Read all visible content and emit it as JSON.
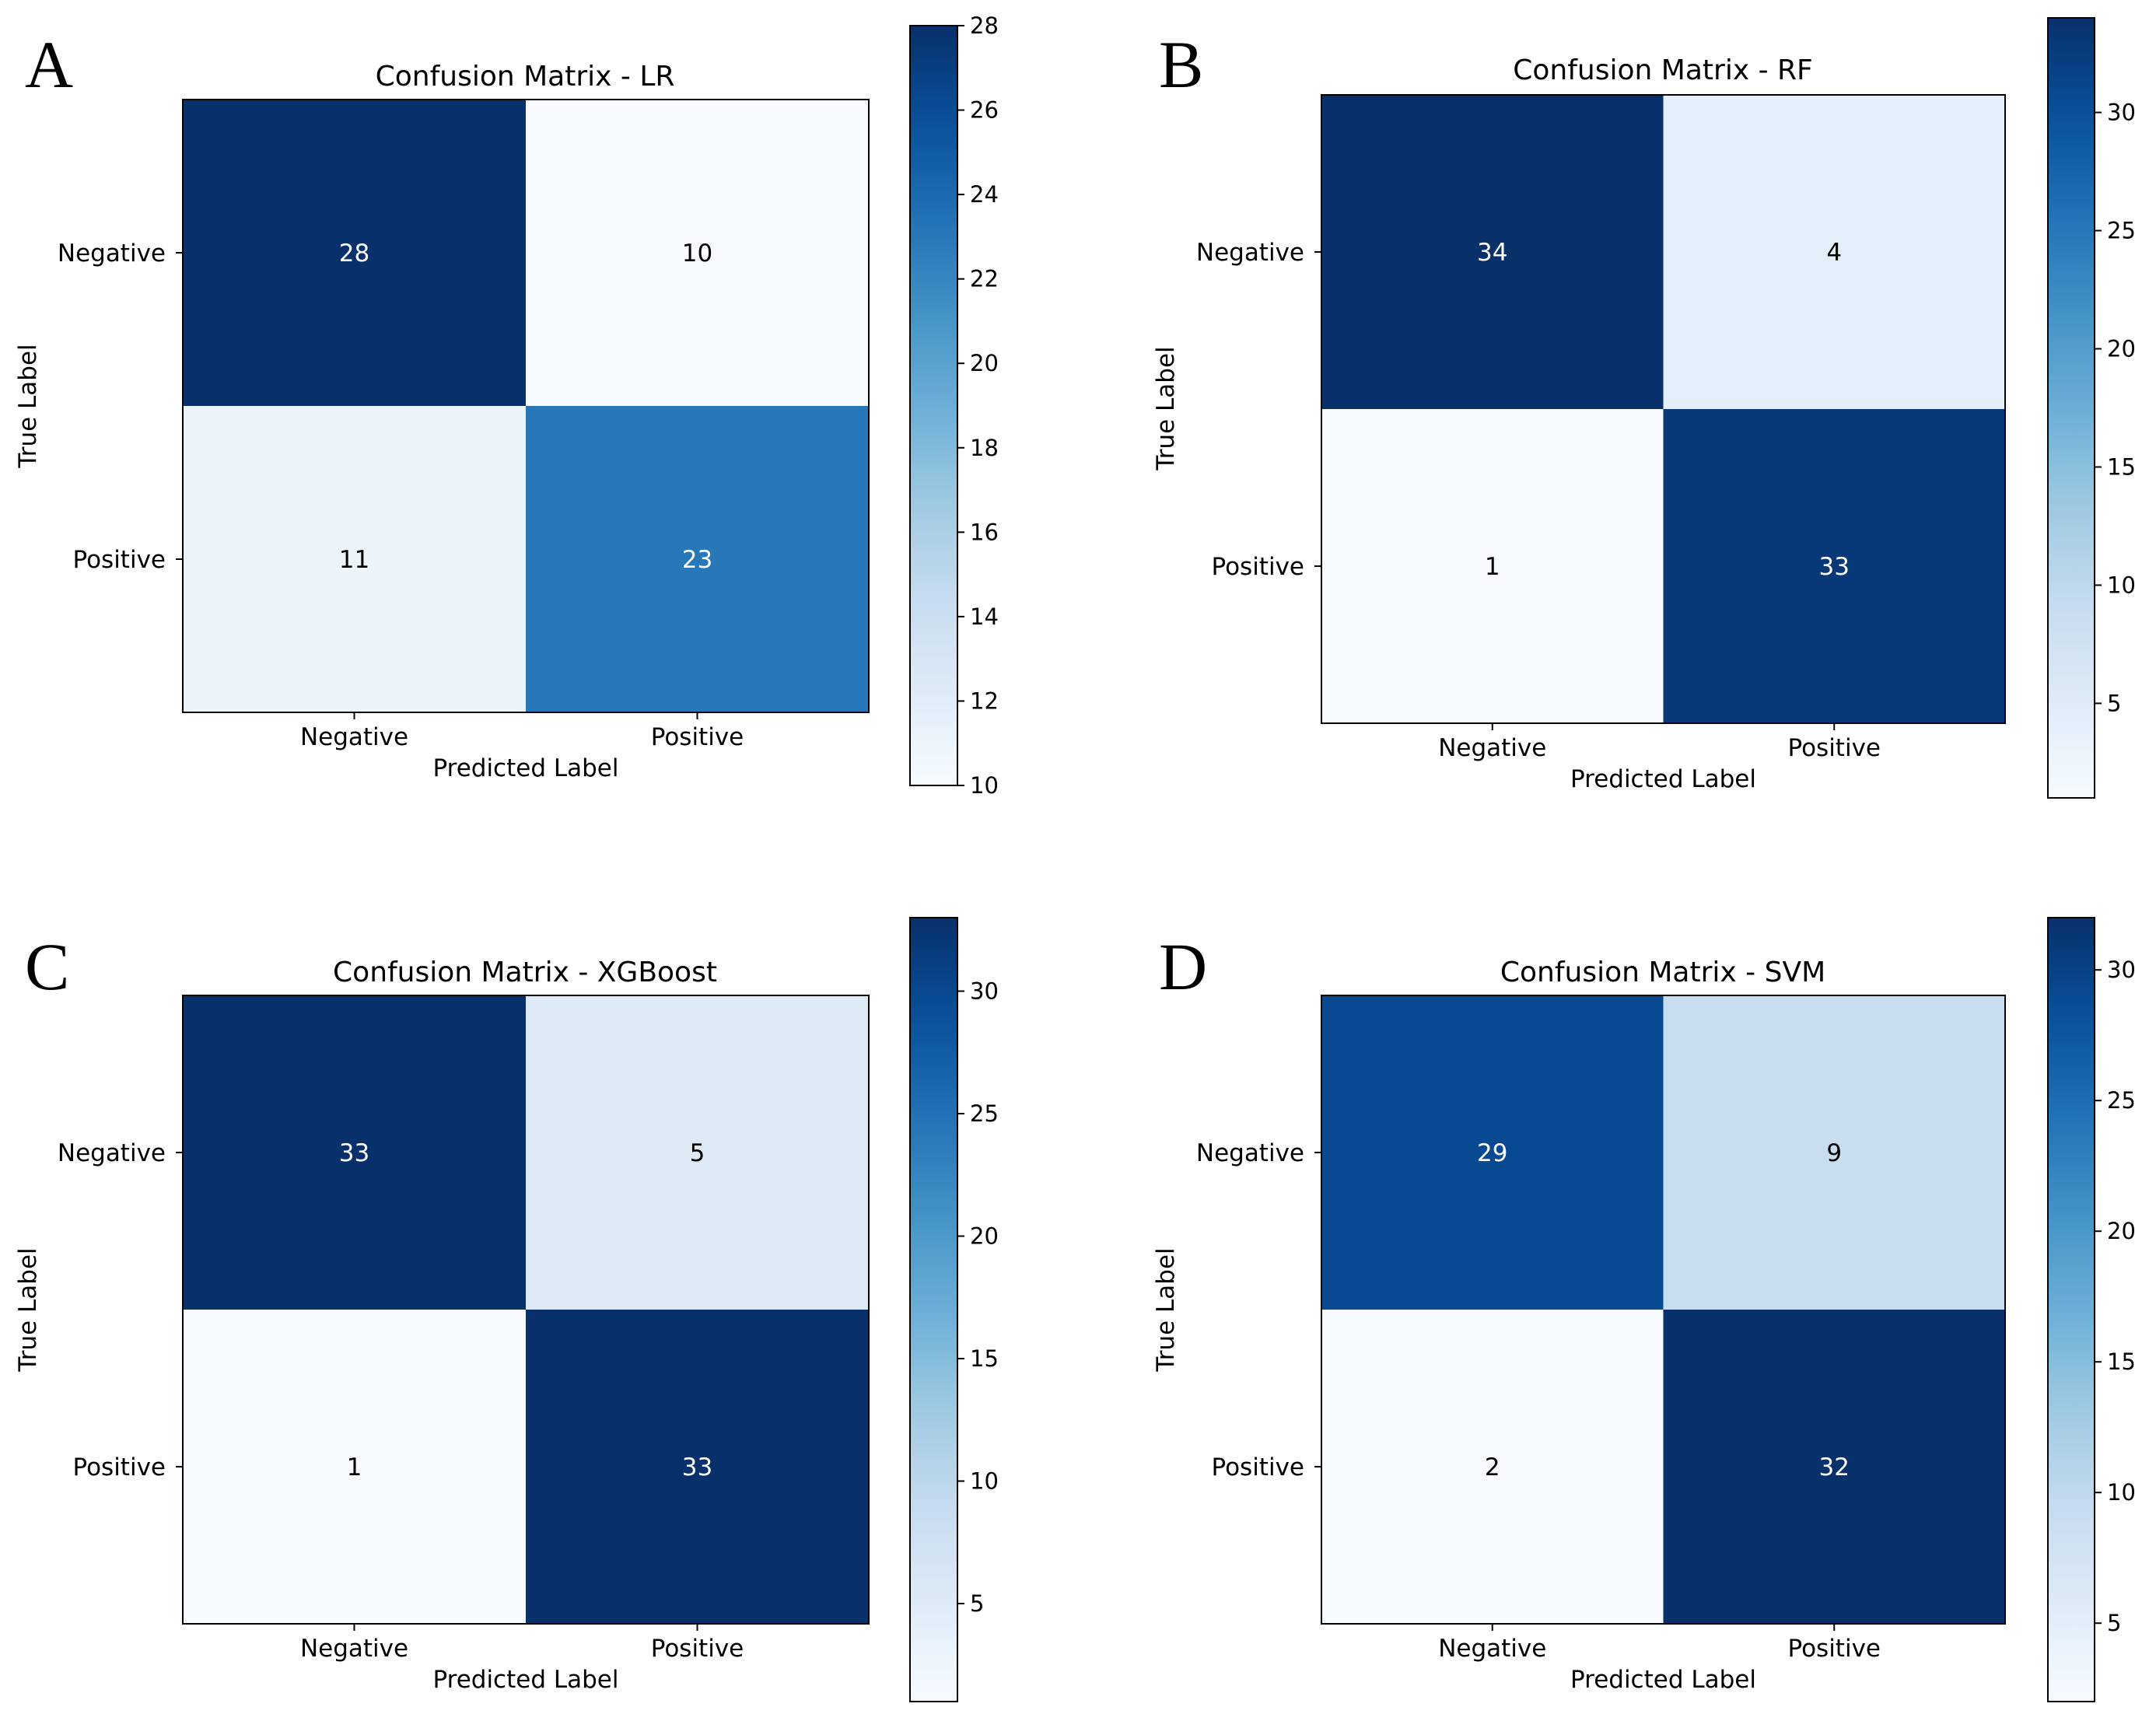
{
  "chart_data": [
    {
      "type": "heatmap",
      "panel": "A",
      "title": "Confusion Matrix - LR",
      "xlabel": "Predicted Label",
      "ylabel": "True Label",
      "x_categories": [
        "Negative",
        "Positive"
      ],
      "y_categories": [
        "Negative",
        "Positive"
      ],
      "matrix": [
        [
          28,
          10
        ],
        [
          11,
          23
        ]
      ],
      "colorbar": {
        "range": [
          10,
          28
        ],
        "ticks": [
          10,
          12,
          14,
          16,
          18,
          20,
          22,
          24,
          26,
          28
        ]
      },
      "colormap": "Blues"
    },
    {
      "type": "heatmap",
      "panel": "B",
      "title": "Confusion Matrix - RF",
      "xlabel": "Predicted Label",
      "ylabel": "True Label",
      "x_categories": [
        "Negative",
        "Positive"
      ],
      "y_categories": [
        "Negative",
        "Positive"
      ],
      "matrix": [
        [
          34,
          4
        ],
        [
          1,
          33
        ]
      ],
      "colorbar": {
        "range": [
          1,
          34
        ],
        "ticks": [
          5,
          10,
          15,
          20,
          25,
          30
        ]
      },
      "colormap": "Blues"
    },
    {
      "type": "heatmap",
      "panel": "C",
      "title": "Confusion Matrix - XGBoost",
      "xlabel": "Predicted Label",
      "ylabel": "True Label",
      "x_categories": [
        "Negative",
        "Positive"
      ],
      "y_categories": [
        "Negative",
        "Positive"
      ],
      "matrix": [
        [
          33,
          5
        ],
        [
          1,
          33
        ]
      ],
      "colorbar": {
        "range": [
          1,
          33
        ],
        "ticks": [
          5,
          10,
          15,
          20,
          25,
          30
        ]
      },
      "colormap": "Blues"
    },
    {
      "type": "heatmap",
      "panel": "D",
      "title": "Confusion Matrix - SVM",
      "xlabel": "Predicted Label",
      "ylabel": "True Label",
      "x_categories": [
        "Negative",
        "Positive"
      ],
      "y_categories": [
        "Negative",
        "Positive"
      ],
      "matrix": [
        [
          29,
          9
        ],
        [
          2,
          32
        ]
      ],
      "colorbar": {
        "range": [
          2,
          32
        ],
        "ticks": [
          5,
          10,
          15,
          20,
          25,
          30
        ]
      },
      "colormap": "Blues"
    }
  ],
  "colors": {
    "blues_light": "#f7fbff",
    "blues_dark": "#08306b",
    "text_dark": "#000000",
    "text_light": "#ffffff"
  }
}
